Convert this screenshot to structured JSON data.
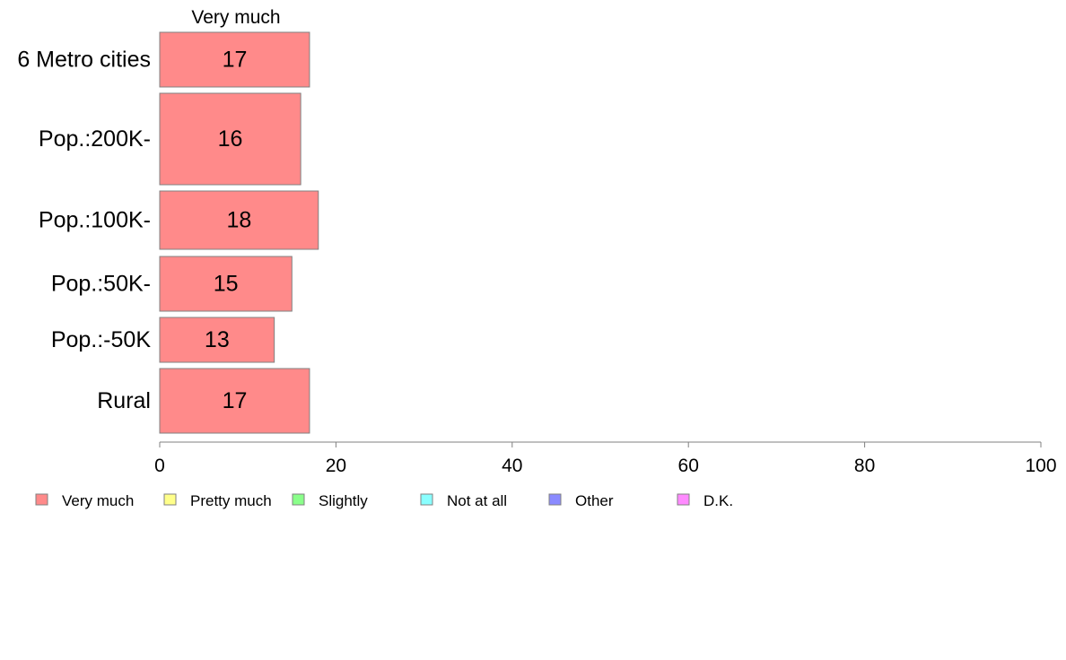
{
  "chart_data": {
    "type": "bar",
    "orientation": "horizontal",
    "stacked": true,
    "column_title": "Very much",
    "categories": [
      "6 Metro cities",
      "Pop.:200K-",
      "Pop.:100K-",
      "Pop.:50K-",
      "Pop.:-50K",
      "Rural"
    ],
    "series": [
      {
        "name": "Very much",
        "color": "#ff8a8a",
        "values": [
          17,
          16,
          18,
          15,
          13,
          17
        ]
      }
    ],
    "value_labels": [
      "17",
      "16",
      "18",
      "15",
      "13",
      "17"
    ],
    "xlim": [
      0,
      100
    ],
    "xticks": [
      0,
      20,
      40,
      60,
      80,
      100
    ],
    "xtick_labels": [
      "0",
      "20",
      "40",
      "60",
      "80",
      "100"
    ],
    "grid": false,
    "legend_position": "bottom",
    "legend": [
      {
        "label": "Very much",
        "color": "#ff8a8a"
      },
      {
        "label": "Pretty much",
        "color": "#ffff8a"
      },
      {
        "label": "Slightly",
        "color": "#8aff8a"
      },
      {
        "label": "Not at all",
        "color": "#8affff"
      },
      {
        "label": "Other",
        "color": "#8a8aff"
      },
      {
        "label": "D.K.",
        "color": "#ff8aff"
      }
    ]
  }
}
